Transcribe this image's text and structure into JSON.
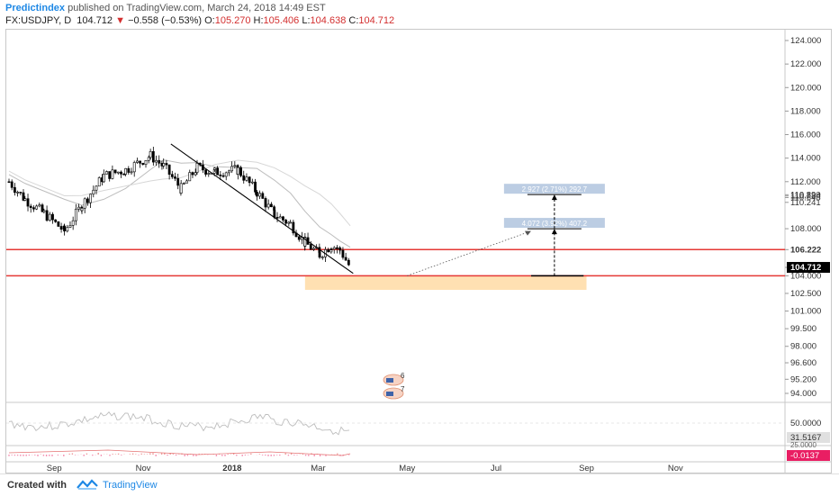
{
  "header": {
    "author": "Predictindex",
    "published_text": "published on TradingView.com, March 24, 2018 14:49 EST",
    "symbol": "FX:USDJPY, D",
    "last": "104.712",
    "change": "−0.558 (−0.53%)",
    "o_label": "O:",
    "o_value": "105.270",
    "h_label": "H:",
    "h_value": "105.406",
    "l_label": "L:",
    "l_value": "104.638",
    "c_label": "C:",
    "c_value": "104.712"
  },
  "footer": {
    "created_with": "Created with",
    "brand": "TradingView"
  },
  "colors": {
    "candle": "#000000",
    "support_line": "#e53935",
    "zone_fill": "#ffe0b2",
    "label_bg": "#b0c4de",
    "last_price_bg": "#000000",
    "negative_badge": "#e91e63",
    "link_blue": "#1e88e5"
  },
  "icons": [
    "arrow-down-icon",
    "tradingview-logo-icon",
    "news-flag-icon"
  ],
  "chart_data": {
    "type": "candlestick",
    "instrument": "FX:USDJPY",
    "timeframe": "D",
    "ylim": [
      93.5,
      125.3
    ],
    "price_ticks": [
      "124.000",
      "122.000",
      "120.000",
      "118.000",
      "116.000",
      "114.000",
      "112.000",
      "110.890",
      "110.784",
      "110.648",
      "110.241",
      "108.000",
      "106.222",
      "104.712",
      "104.000",
      "102.500",
      "101.000",
      "99.500",
      "98.000",
      "96.600",
      "95.200",
      "94.000"
    ],
    "time_ticks": [
      "Sep",
      "Nov",
      "2018",
      "Mar",
      "May",
      "Jul",
      "Sep",
      "Nov"
    ],
    "price_path": [
      [
        "2017-08-01",
        112.0
      ],
      [
        "2017-08-12",
        110.5
      ],
      [
        "2017-08-25",
        109.3
      ],
      [
        "2017-09-08",
        107.8
      ],
      [
        "2017-09-20",
        110.0
      ],
      [
        "2017-10-05",
        112.5
      ],
      [
        "2017-10-20",
        113.0
      ],
      [
        "2017-11-06",
        114.2
      ],
      [
        "2017-11-15",
        113.3
      ],
      [
        "2017-11-27",
        111.4
      ],
      [
        "2017-12-08",
        113.2
      ],
      [
        "2017-12-20",
        112.8
      ],
      [
        "2018-01-05",
        113.0
      ],
      [
        "2018-01-18",
        111.1
      ],
      [
        "2018-01-30",
        109.2
      ],
      [
        "2018-02-10",
        108.4
      ],
      [
        "2018-02-20",
        106.8
      ],
      [
        "2018-03-02",
        105.8
      ],
      [
        "2018-03-10",
        106.6
      ],
      [
        "2018-03-16",
        106.2
      ],
      [
        "2018-03-23",
        104.7
      ]
    ],
    "support_levels": [
      106.222,
      104.0
    ],
    "zone": {
      "low": 102.8,
      "high": 104.0,
      "start": "2018-02-20",
      "end": "2018-09-01"
    },
    "trendline": {
      "from": [
        "2017-11-20",
        115.2
      ],
      "to": [
        "2018-03-25",
        104.2
      ]
    },
    "measurements": [
      {
        "label": "4.072 (3.92%) 407.2",
        "from": 104.0,
        "to": 108.0
      },
      {
        "label": "2.927 (2.71%) 292.7",
        "from": 108.0,
        "to": 110.9
      }
    ],
    "event_flags": [
      "6",
      "7"
    ],
    "rsi": {
      "reference_levels": [
        "50.0000",
        "25.0000"
      ],
      "last": "31.5167"
    },
    "macd": {
      "last": "-0.0137"
    }
  }
}
